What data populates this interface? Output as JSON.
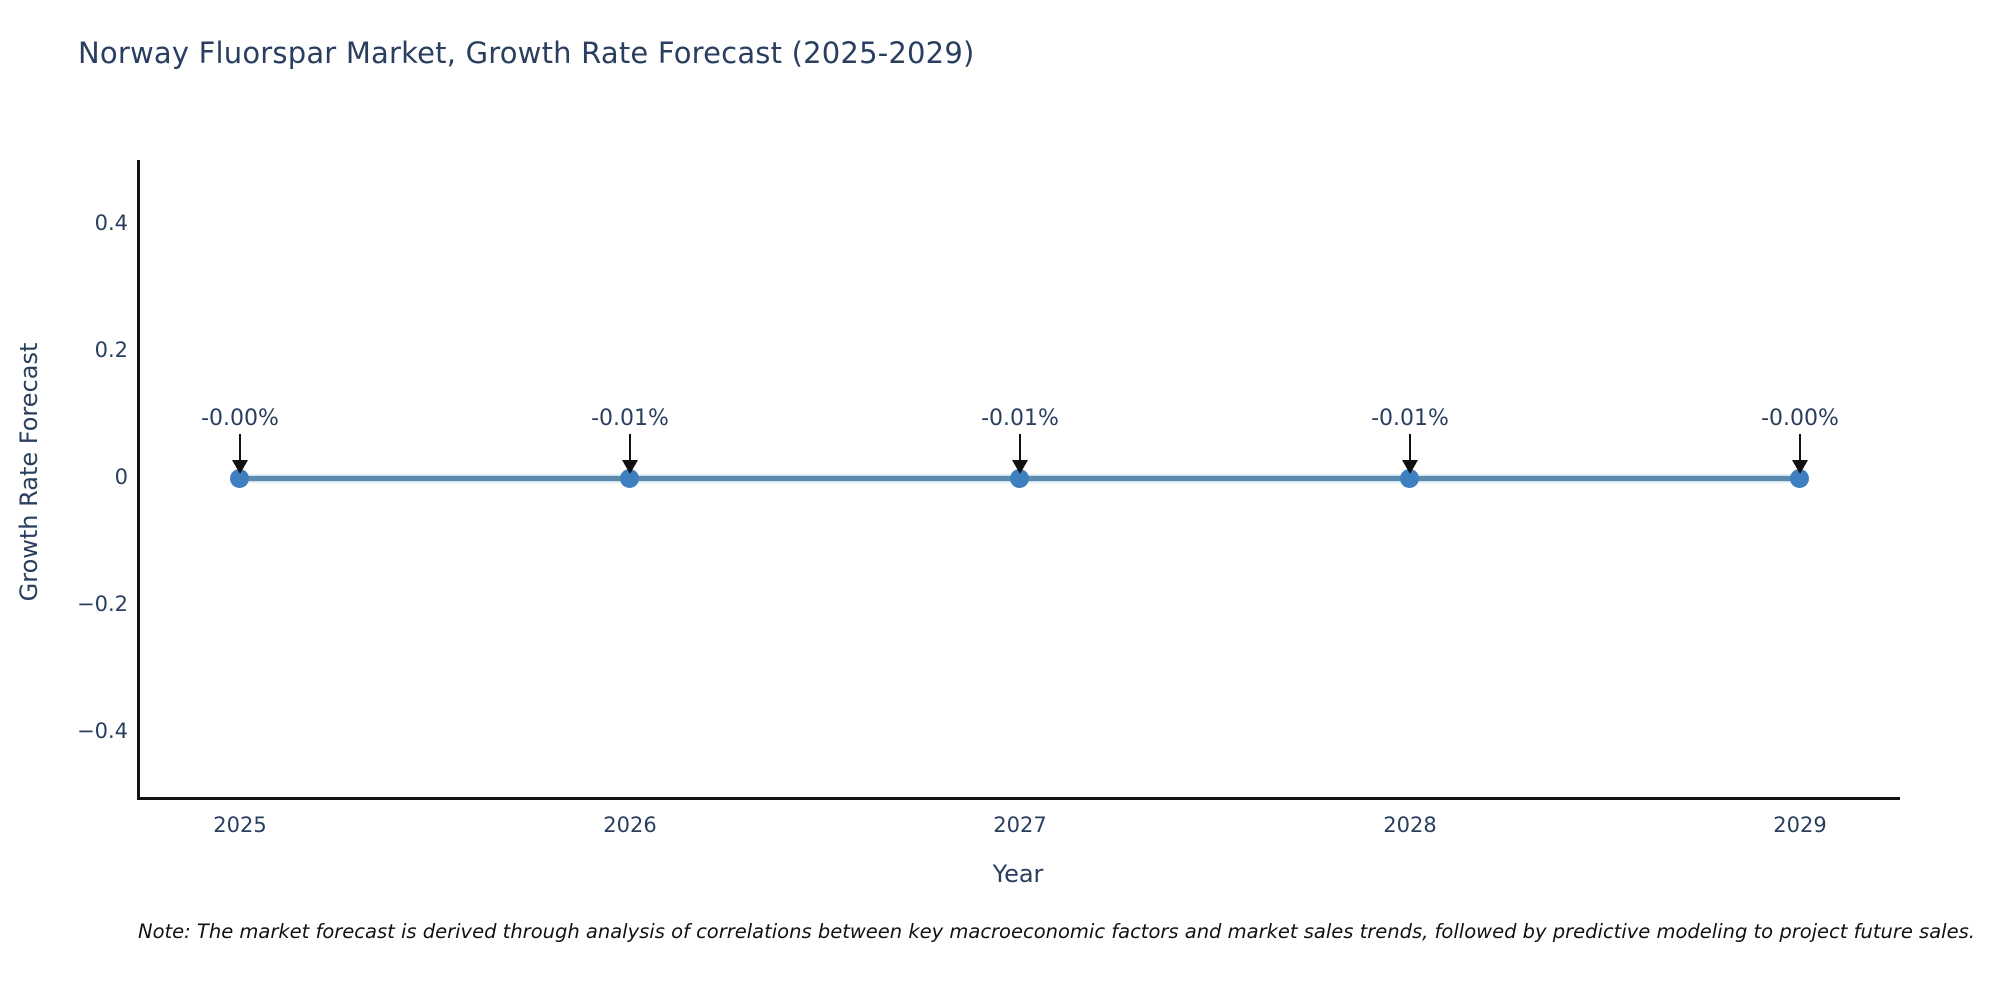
{
  "chart": {
    "title": "Norway Fluorspar Market, Growth Rate Forecast (2025-2029)"
  },
  "chart_data": {
    "type": "line",
    "title": "Norway Fluorspar Market, Growth Rate Forecast (2025-2029)",
    "xlabel": "Year",
    "ylabel": "Growth Rate Forecast",
    "categories": [
      "2025",
      "2026",
      "2027",
      "2028",
      "2029"
    ],
    "x": [
      2025,
      2026,
      2027,
      2028,
      2029
    ],
    "values_percent": [
      -0.0,
      -0.01,
      -0.01,
      -0.01,
      -0.0
    ],
    "point_labels": [
      "-0.00%",
      "-0.01%",
      "-0.01%",
      "-0.01%",
      "-0.00%"
    ],
    "ytick_labels": [
      "0.4",
      "0.2",
      "0",
      "−0.2",
      "−0.4"
    ],
    "ylim": [
      -0.5,
      0.5
    ],
    "grid": false,
    "legend_position": "none",
    "line_color": "#5b8aae",
    "marker_color": "#3e7fbf",
    "text_color": "#2a3f5f",
    "axis_color": "#111111",
    "annotation_arrow_color": "#111111"
  },
  "note": {
    "text": "Note: The market forecast is derived through analysis of correlations between key macroeconomic factors and market sales trends, followed by predictive modeling to project future sales."
  }
}
